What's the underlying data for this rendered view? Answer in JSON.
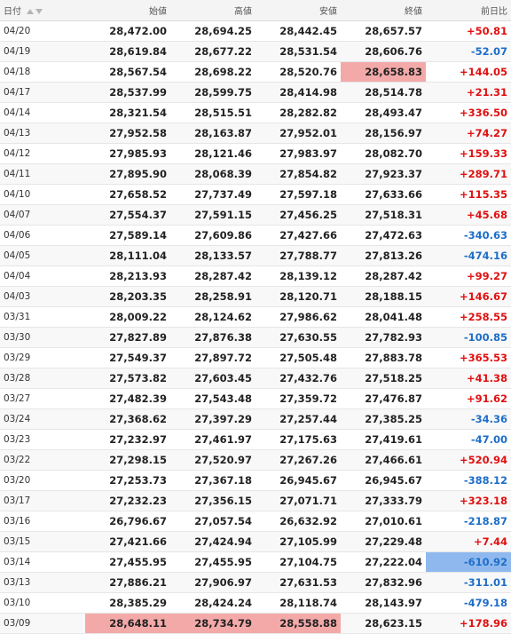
{
  "headers": {
    "date": "日付",
    "open": "始値",
    "high": "高値",
    "low": "安値",
    "close": "終値",
    "change": "前日比"
  },
  "colors": {
    "up": "#e01010",
    "down": "#1e6ec8",
    "highlight_red": "#f4a9a9",
    "highlight_blue": "#8fb9ee"
  },
  "rows": [
    {
      "date": "04/20",
      "open": "28,472.00",
      "high": "28,694.25",
      "low": "28,442.45",
      "close": "28,657.57",
      "change": "+50.81",
      "dir": "up",
      "hl": []
    },
    {
      "date": "04/19",
      "open": "28,619.84",
      "high": "28,677.22",
      "low": "28,531.54",
      "close": "28,606.76",
      "change": "-52.07",
      "dir": "down",
      "hl": []
    },
    {
      "date": "04/18",
      "open": "28,567.54",
      "high": "28,698.22",
      "low": "28,520.76",
      "close": "28,658.83",
      "change": "+144.05",
      "dir": "up",
      "hl": [
        "close"
      ]
    },
    {
      "date": "04/17",
      "open": "28,537.99",
      "high": "28,599.75",
      "low": "28,414.98",
      "close": "28,514.78",
      "change": "+21.31",
      "dir": "up",
      "hl": []
    },
    {
      "date": "04/14",
      "open": "28,321.54",
      "high": "28,515.51",
      "low": "28,282.82",
      "close": "28,493.47",
      "change": "+336.50",
      "dir": "up",
      "hl": []
    },
    {
      "date": "04/13",
      "open": "27,952.58",
      "high": "28,163.87",
      "low": "27,952.01",
      "close": "28,156.97",
      "change": "+74.27",
      "dir": "up",
      "hl": []
    },
    {
      "date": "04/12",
      "open": "27,985.93",
      "high": "28,121.46",
      "low": "27,983.97",
      "close": "28,082.70",
      "change": "+159.33",
      "dir": "up",
      "hl": []
    },
    {
      "date": "04/11",
      "open": "27,895.90",
      "high": "28,068.39",
      "low": "27,854.82",
      "close": "27,923.37",
      "change": "+289.71",
      "dir": "up",
      "hl": []
    },
    {
      "date": "04/10",
      "open": "27,658.52",
      "high": "27,737.49",
      "low": "27,597.18",
      "close": "27,633.66",
      "change": "+115.35",
      "dir": "up",
      "hl": []
    },
    {
      "date": "04/07",
      "open": "27,554.37",
      "high": "27,591.15",
      "low": "27,456.25",
      "close": "27,518.31",
      "change": "+45.68",
      "dir": "up",
      "hl": []
    },
    {
      "date": "04/06",
      "open": "27,589.14",
      "high": "27,609.86",
      "low": "27,427.66",
      "close": "27,472.63",
      "change": "-340.63",
      "dir": "down",
      "hl": []
    },
    {
      "date": "04/05",
      "open": "28,111.04",
      "high": "28,133.57",
      "low": "27,788.77",
      "close": "27,813.26",
      "change": "-474.16",
      "dir": "down",
      "hl": []
    },
    {
      "date": "04/04",
      "open": "28,213.93",
      "high": "28,287.42",
      "low": "28,139.12",
      "close": "28,287.42",
      "change": "+99.27",
      "dir": "up",
      "hl": []
    },
    {
      "date": "04/03",
      "open": "28,203.35",
      "high": "28,258.91",
      "low": "28,120.71",
      "close": "28,188.15",
      "change": "+146.67",
      "dir": "up",
      "hl": []
    },
    {
      "date": "03/31",
      "open": "28,009.22",
      "high": "28,124.62",
      "low": "27,986.62",
      "close": "28,041.48",
      "change": "+258.55",
      "dir": "up",
      "hl": []
    },
    {
      "date": "03/30",
      "open": "27,827.89",
      "high": "27,876.38",
      "low": "27,630.55",
      "close": "27,782.93",
      "change": "-100.85",
      "dir": "down",
      "hl": []
    },
    {
      "date": "03/29",
      "open": "27,549.37",
      "high": "27,897.72",
      "low": "27,505.48",
      "close": "27,883.78",
      "change": "+365.53",
      "dir": "up",
      "hl": []
    },
    {
      "date": "03/28",
      "open": "27,573.82",
      "high": "27,603.45",
      "low": "27,432.76",
      "close": "27,518.25",
      "change": "+41.38",
      "dir": "up",
      "hl": []
    },
    {
      "date": "03/27",
      "open": "27,482.39",
      "high": "27,543.48",
      "low": "27,359.72",
      "close": "27,476.87",
      "change": "+91.62",
      "dir": "up",
      "hl": []
    },
    {
      "date": "03/24",
      "open": "27,368.62",
      "high": "27,397.29",
      "low": "27,257.44",
      "close": "27,385.25",
      "change": "-34.36",
      "dir": "down",
      "hl": []
    },
    {
      "date": "03/23",
      "open": "27,232.97",
      "high": "27,461.97",
      "low": "27,175.63",
      "close": "27,419.61",
      "change": "-47.00",
      "dir": "down",
      "hl": []
    },
    {
      "date": "03/22",
      "open": "27,298.15",
      "high": "27,520.97",
      "low": "27,267.26",
      "close": "27,466.61",
      "change": "+520.94",
      "dir": "up",
      "hl": []
    },
    {
      "date": "03/20",
      "open": "27,253.73",
      "high": "27,367.18",
      "low": "26,945.67",
      "close": "26,945.67",
      "change": "-388.12",
      "dir": "down",
      "hl": []
    },
    {
      "date": "03/17",
      "open": "27,232.23",
      "high": "27,356.15",
      "low": "27,071.71",
      "close": "27,333.79",
      "change": "+323.18",
      "dir": "up",
      "hl": []
    },
    {
      "date": "03/16",
      "open": "26,796.67",
      "high": "27,057.54",
      "low": "26,632.92",
      "close": "27,010.61",
      "change": "-218.87",
      "dir": "down",
      "hl": []
    },
    {
      "date": "03/15",
      "open": "27,421.66",
      "high": "27,424.94",
      "low": "27,105.99",
      "close": "27,229.48",
      "change": "+7.44",
      "dir": "up",
      "hl": []
    },
    {
      "date": "03/14",
      "open": "27,455.95",
      "high": "27,455.95",
      "low": "27,104.75",
      "close": "27,222.04",
      "change": "-610.92",
      "dir": "down",
      "hl": [
        "change"
      ]
    },
    {
      "date": "03/13",
      "open": "27,886.21",
      "high": "27,906.97",
      "low": "27,631.53",
      "close": "27,832.96",
      "change": "-311.01",
      "dir": "down",
      "hl": []
    },
    {
      "date": "03/10",
      "open": "28,385.29",
      "high": "28,424.24",
      "low": "28,118.74",
      "close": "28,143.97",
      "change": "-479.18",
      "dir": "down",
      "hl": []
    },
    {
      "date": "03/09",
      "open": "28,648.11",
      "high": "28,734.79",
      "low": "28,558.88",
      "close": "28,623.15",
      "change": "+178.96",
      "dir": "up",
      "hl": [
        "open",
        "high",
        "low"
      ]
    }
  ]
}
